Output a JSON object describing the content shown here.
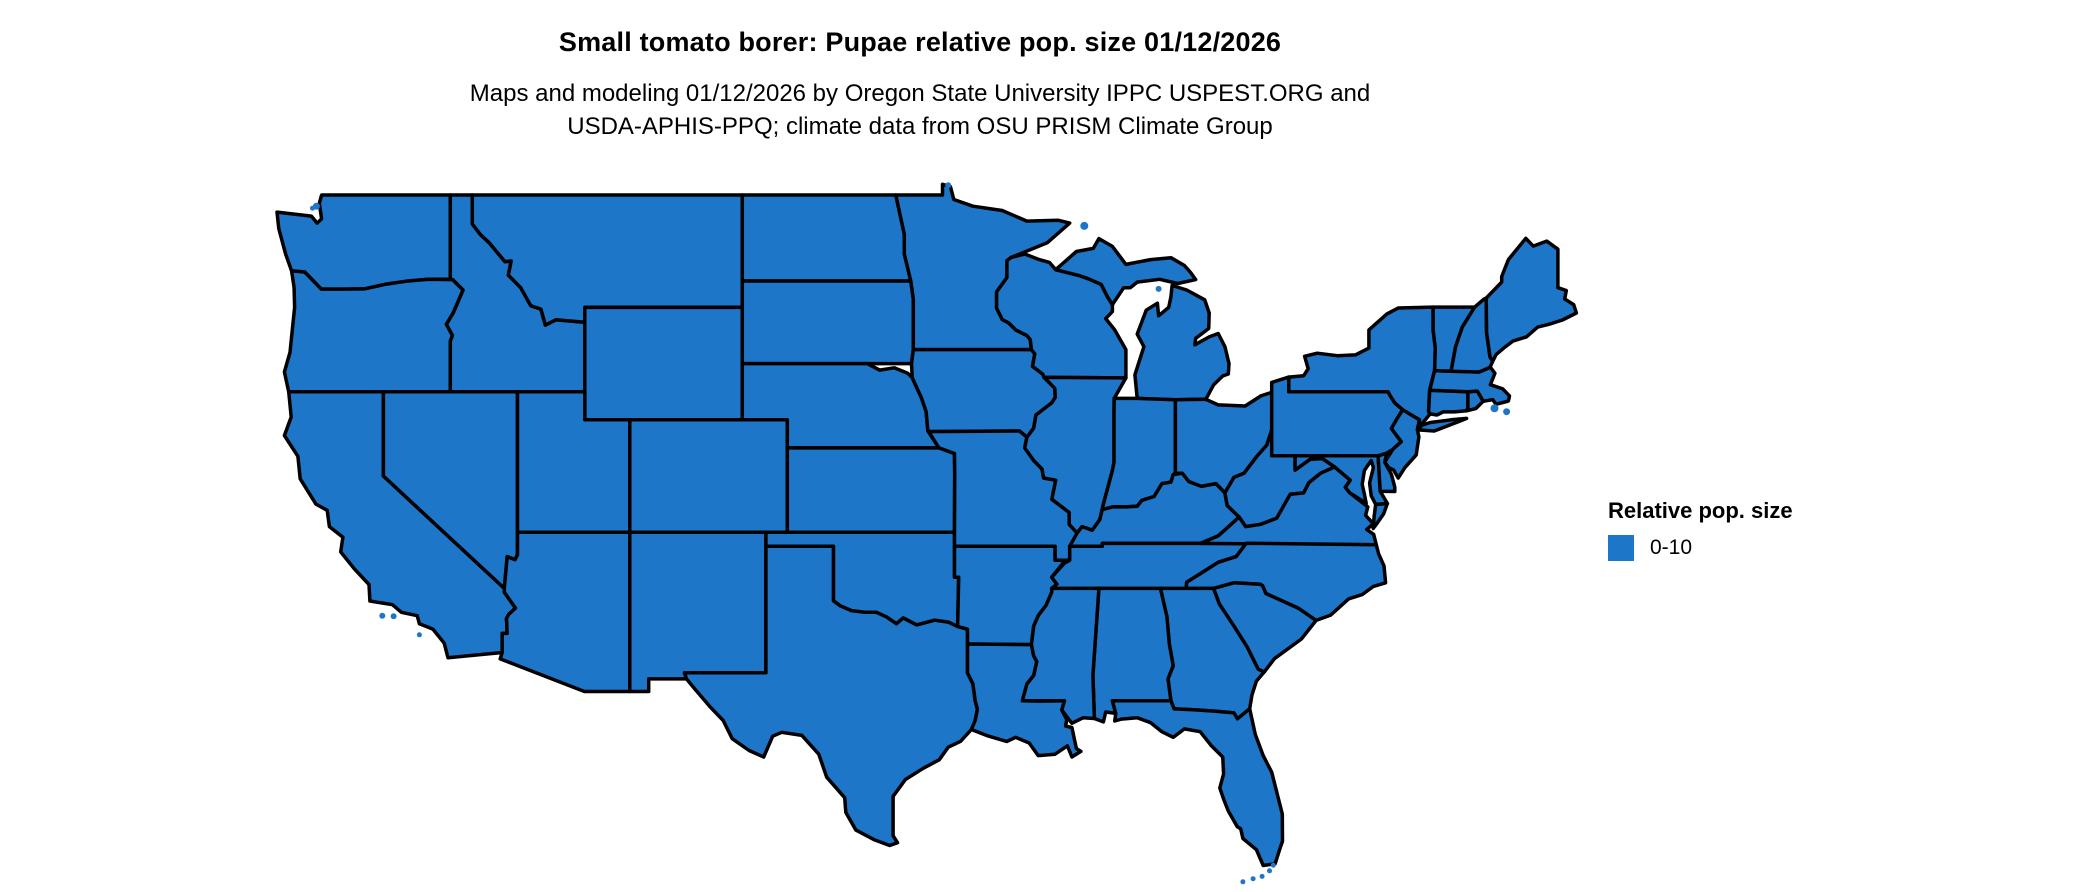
{
  "header": {
    "title": "Small tomato borer: Pupae relative pop. size 01/12/2026",
    "subtitle": "Maps and modeling 01/12/2026 by Oregon State University IPPC USPEST.ORG and\nUSDA-APHIS-PPQ; climate data from OSU PRISM Climate Group"
  },
  "legend": {
    "title": "Relative pop. size",
    "items": [
      {
        "label": "0-10",
        "color": "#1e76c8"
      }
    ]
  },
  "map": {
    "fill_color": "#1e76c8",
    "outline_color": "#000000",
    "background_color": "#ffffff"
  }
}
